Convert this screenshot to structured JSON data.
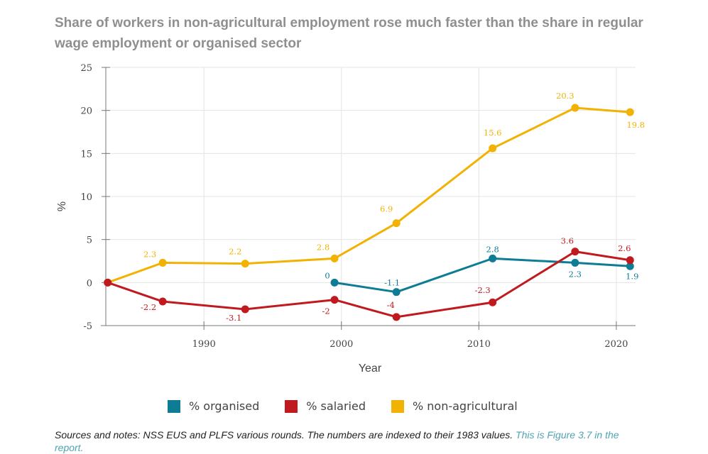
{
  "chart_data": {
    "type": "line",
    "title": "Share of workers in non-agricultural employment rose much faster than the share in regular wage employment or organised sector",
    "xlabel": "Year",
    "ylabel": "%",
    "xlim": [
      1982.5,
      2021.4
    ],
    "ylim": [
      -5,
      25
    ],
    "xticks": [
      1990,
      2000,
      2010,
      2020
    ],
    "yticks": [
      -5,
      0,
      5,
      10,
      15,
      20,
      25
    ],
    "grid": true,
    "legend_position": "bottom",
    "series": [
      {
        "name": "% organised",
        "color": "#0f7c95",
        "x": [
          1999.5,
          2004,
          2011,
          2017,
          2021
        ],
        "values": [
          0,
          -1.1,
          2.8,
          2.3,
          1.9
        ],
        "labels": [
          "0",
          "-1.1",
          "2.8",
          "2.3",
          "1.9"
        ]
      },
      {
        "name": "% salaried",
        "color": "#c01a1f",
        "x": [
          1983,
          1987,
          1993,
          1999.5,
          2004,
          2011,
          2017,
          2021
        ],
        "values": [
          0,
          -2.2,
          -3.1,
          -2,
          -4,
          -2.3,
          3.6,
          2.6
        ],
        "labels": [
          "",
          "-2.2",
          "-3.1",
          "-2",
          "-4",
          "-2.3",
          "3.6",
          "2.6"
        ]
      },
      {
        "name": "% non-agricultural",
        "color": "#f2b203",
        "x": [
          1983,
          1987,
          1993,
          1999.5,
          2004,
          2011,
          2017,
          2021
        ],
        "values": [
          0,
          2.3,
          2.2,
          2.8,
          6.9,
          15.6,
          20.3,
          19.8
        ],
        "labels": [
          "",
          "2.3",
          "2.2",
          "2.8",
          "6.9",
          "15.6",
          "20.3",
          "19.8"
        ]
      }
    ]
  },
  "legend": [
    {
      "label": "% organised",
      "color": "#0f7c95"
    },
    {
      "label": "% salaried",
      "color": "#c01a1f"
    },
    {
      "label": "% non-agricultural",
      "color": "#f2b203"
    }
  ],
  "notes": {
    "text": "Sources and notes: NSS EUS and PLFS various rounds. The numbers are indexed to their 1983 values. ",
    "link_text": "This is Figure 3.7 in the report."
  }
}
